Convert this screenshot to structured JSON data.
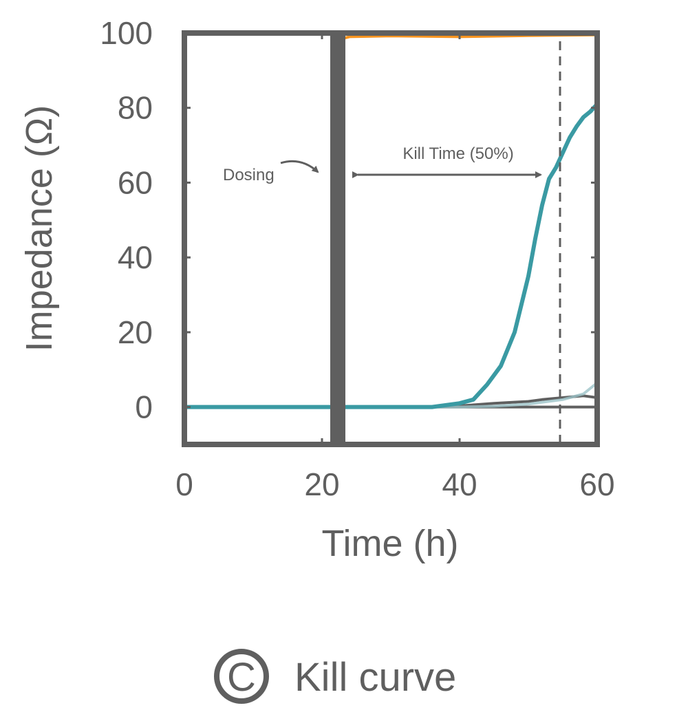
{
  "figure": {
    "panel_letter": "C",
    "panel_title": "Kill curve"
  },
  "chart_data": {
    "type": "line",
    "title": "",
    "xlabel": "Time (h)",
    "ylabel": "Impedance (Ω)",
    "xlim": [
      0,
      60
    ],
    "ylim": [
      -10,
      100
    ],
    "xticks": [
      0,
      20,
      40,
      60
    ],
    "yticks": [
      0,
      20,
      40,
      60,
      80,
      100
    ],
    "grid": false,
    "legend": "none",
    "series": [
      {
        "color": "#f7931e",
        "width": 4,
        "opacity": 1,
        "x": [
          0,
          21.5,
          22.2,
          23,
          24,
          30,
          40,
          50,
          60
        ],
        "y": [
          0,
          0,
          60,
          98.5,
          99,
          99.2,
          99,
          99.3,
          99.5
        ]
      },
      {
        "color": "#5f5f5f",
        "width": 4,
        "opacity": 1,
        "x": [
          0,
          30,
          35,
          40,
          45,
          50,
          52,
          55,
          58,
          60
        ],
        "y": [
          0,
          0,
          0,
          0.3,
          1,
          1.5,
          2,
          2.5,
          3,
          2.5
        ]
      },
      {
        "color": "#9cc3c8",
        "width": 4,
        "opacity": 0.8,
        "x": [
          0,
          40,
          45,
          50,
          55,
          58,
          59,
          60
        ],
        "y": [
          0,
          0,
          0.2,
          0.8,
          2,
          3.5,
          5,
          6.5
        ]
      },
      {
        "color": "#3a9aa3",
        "width": 6,
        "opacity": 1,
        "x": [
          0,
          36,
          40,
          42,
          44,
          46,
          48,
          50,
          51,
          52,
          53,
          54,
          55,
          56,
          57,
          58,
          59,
          60
        ],
        "y": [
          0,
          0,
          1,
          2,
          6,
          11,
          20,
          35,
          45,
          54,
          61,
          64,
          68,
          72,
          75,
          77.5,
          79,
          81
        ]
      }
    ],
    "dosing_time": 22.3,
    "kill_time_marker": 54.6,
    "annotations": {
      "dosing": "Dosing",
      "kill_time": "Kill Time (50%)"
    }
  }
}
